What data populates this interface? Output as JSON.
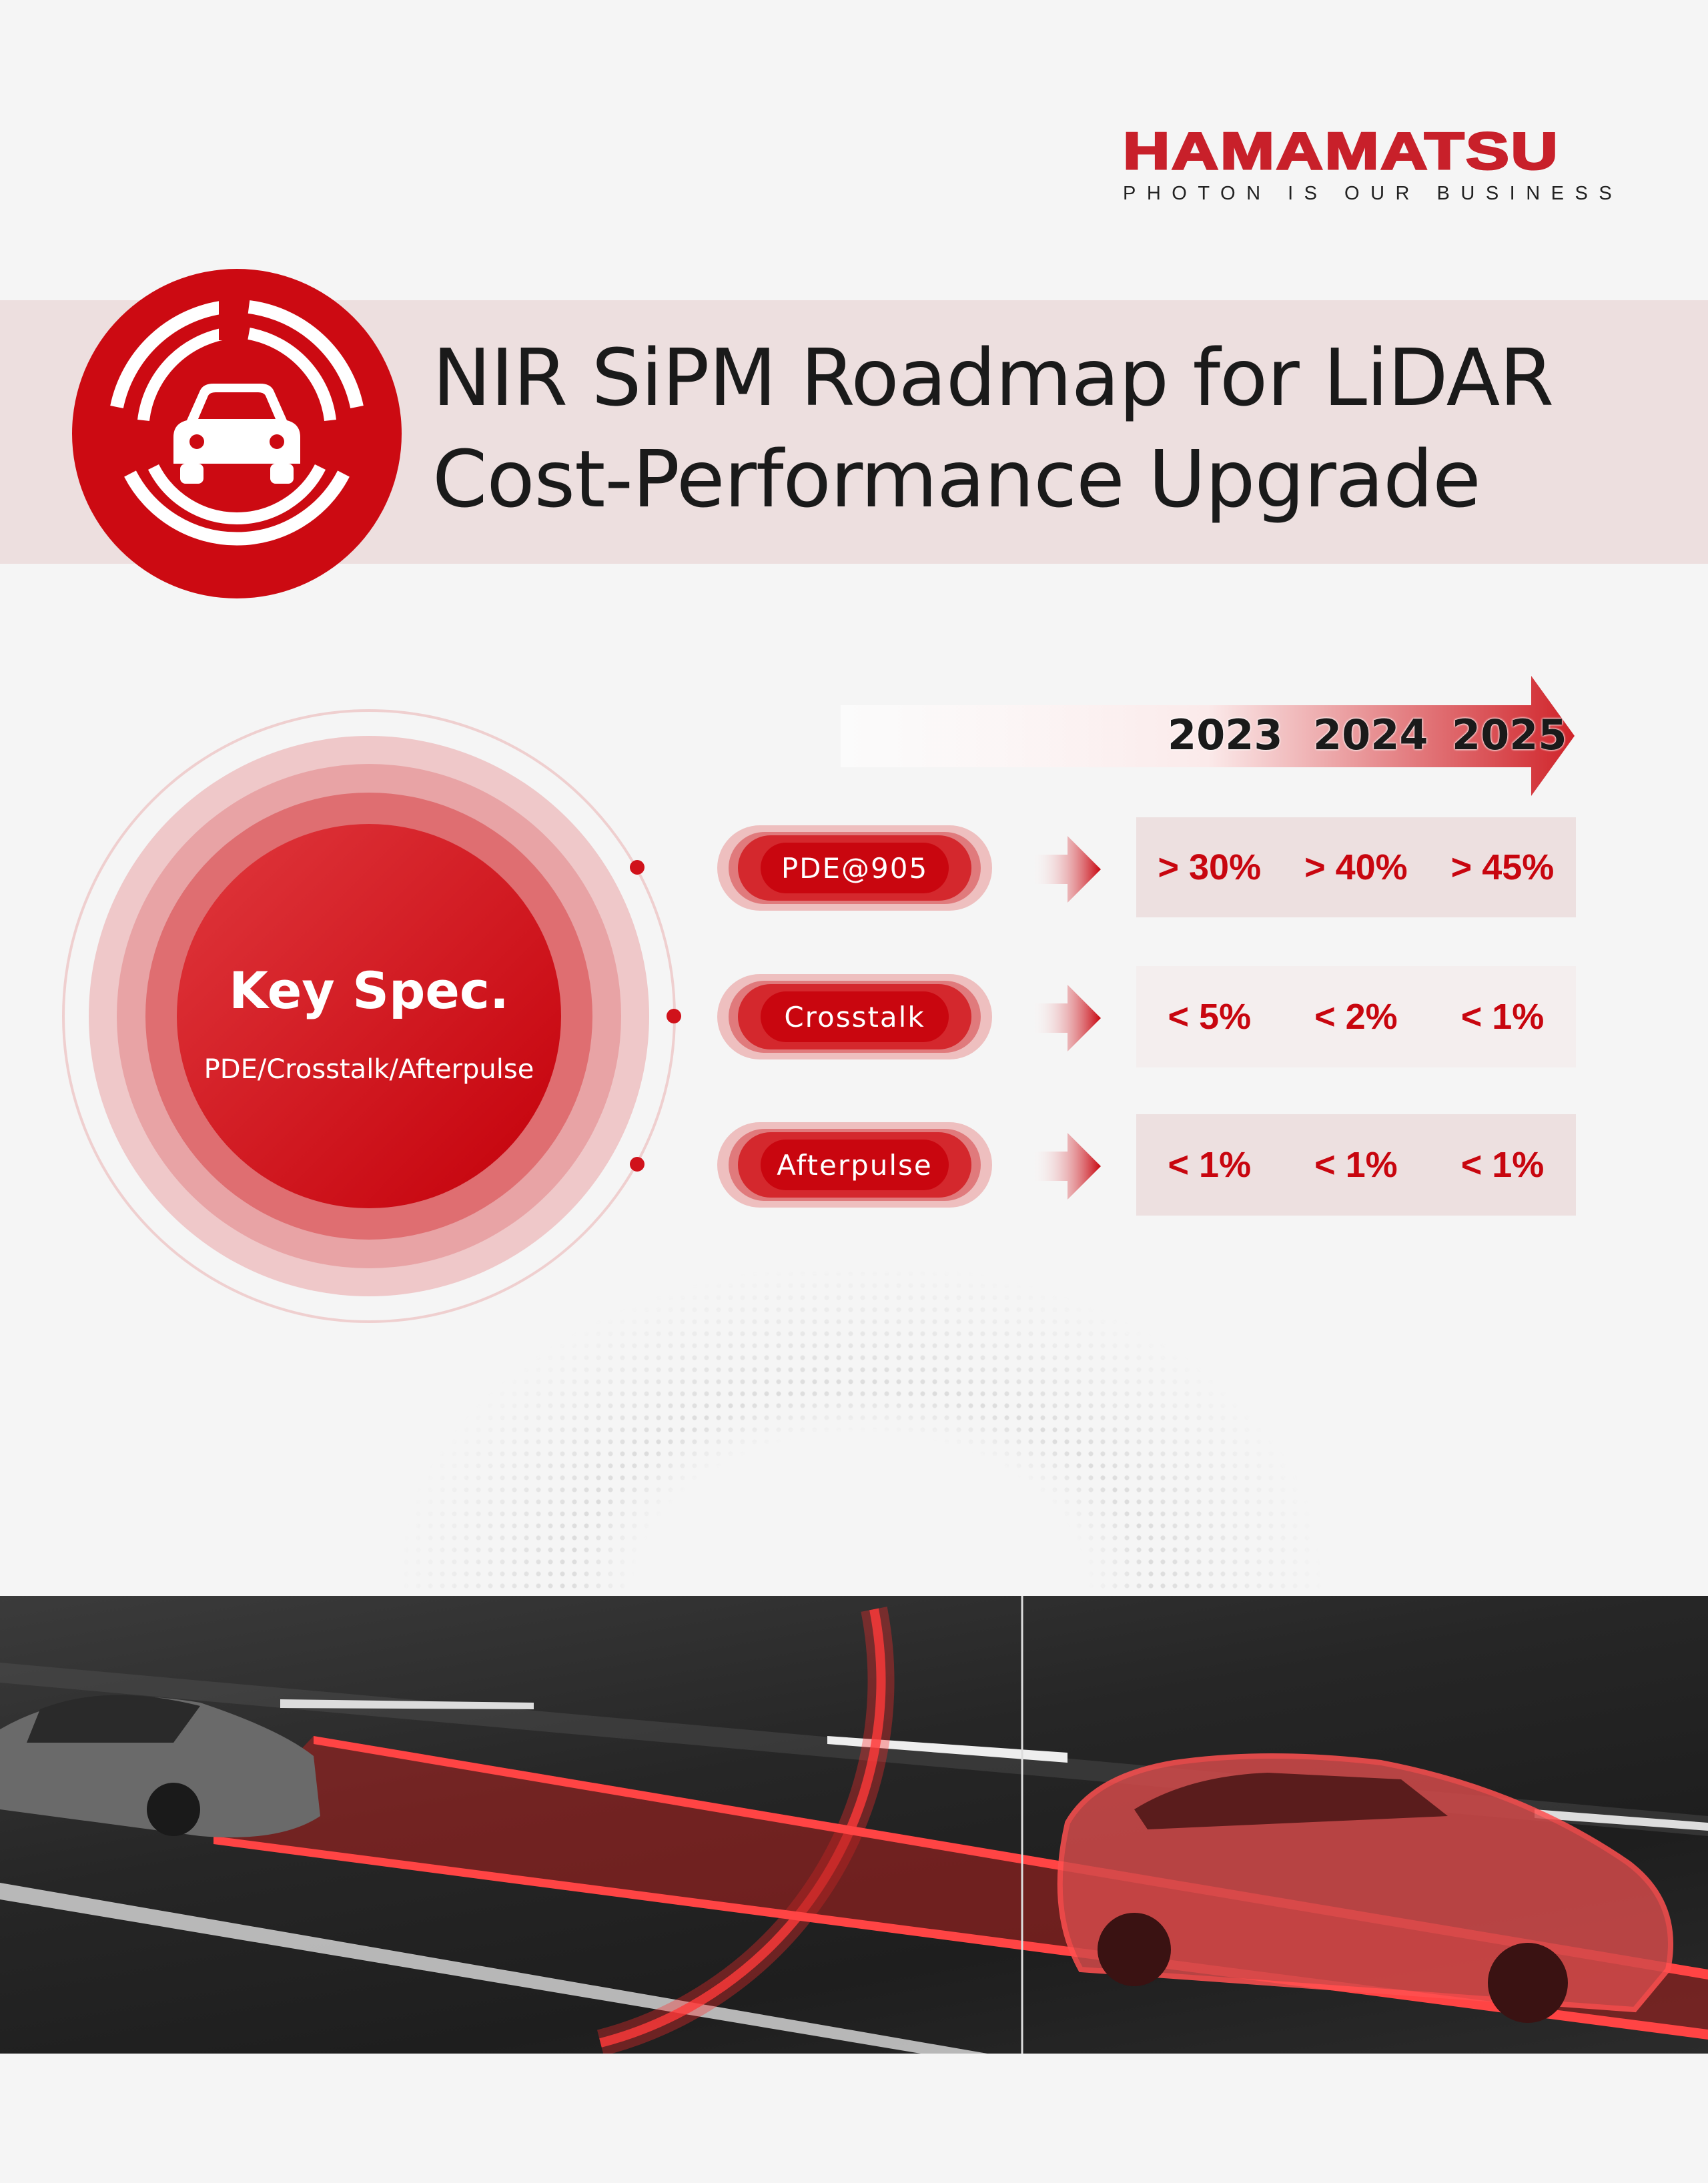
{
  "logo": {
    "brand": "HAMAMATSU",
    "tagline": "PHOTON IS OUR BUSINESS"
  },
  "header": {
    "title_line1": "NIR SiPM Roadmap for LiDAR",
    "title_line2": "Cost-Performance Upgrade",
    "icon": "car-radar-icon"
  },
  "key_spec": {
    "title": "Key Spec.",
    "subtitle": "PDE/Crosstalk/Afterpulse"
  },
  "years": [
    "2023",
    "2024",
    "2025"
  ],
  "specs": [
    {
      "label": "PDE@905",
      "values": [
        "> 30%",
        "> 40%",
        "> 45%"
      ]
    },
    {
      "label": "Crosstalk",
      "values": [
        "< 5%",
        "< 2%",
        "< 1%"
      ]
    },
    {
      "label": "Afterpulse",
      "values": [
        "< 1%",
        "< 1%",
        "< 1%"
      ]
    }
  ],
  "colors": {
    "brand_red": "#c8202a",
    "accent_red": "#d0121b",
    "band": "#eddfdf",
    "background": "#f5f5f5"
  }
}
